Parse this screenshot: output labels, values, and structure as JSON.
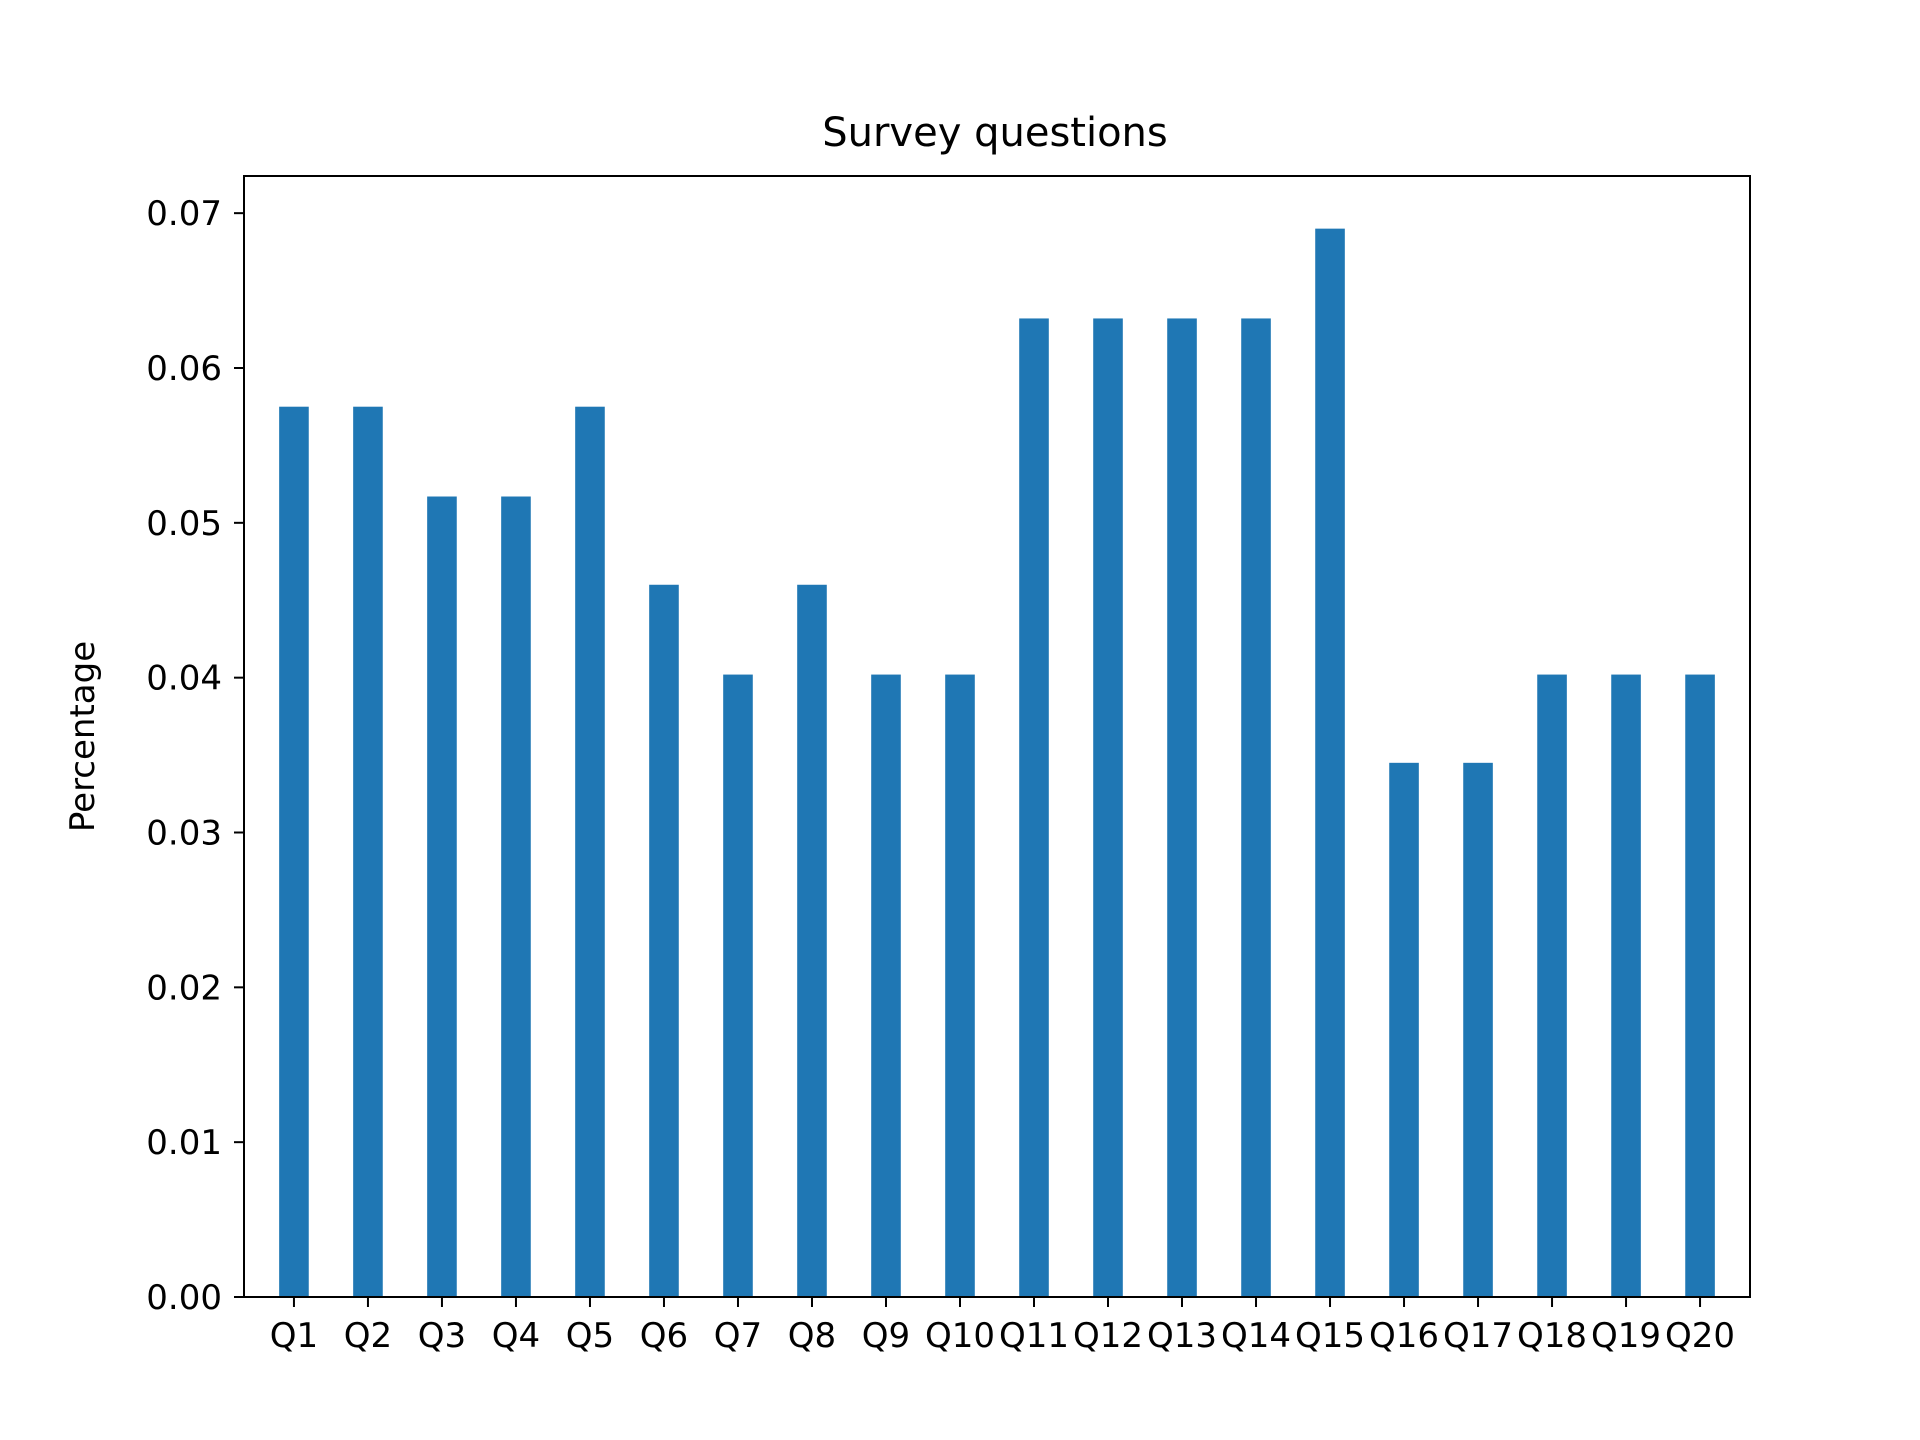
{
  "chart_data": {
    "type": "bar",
    "title": "Survey questions",
    "xlabel": "",
    "ylabel": "Percentage",
    "categories": [
      "Q1",
      "Q2",
      "Q3",
      "Q4",
      "Q5",
      "Q6",
      "Q7",
      "Q8",
      "Q9",
      "Q10",
      "Q11",
      "Q12",
      "Q13",
      "Q14",
      "Q15",
      "Q16",
      "Q17",
      "Q18",
      "Q19",
      "Q20"
    ],
    "values": [
      0.0575,
      0.0575,
      0.0517,
      0.0517,
      0.0575,
      0.046,
      0.0402,
      0.046,
      0.0402,
      0.0402,
      0.0632,
      0.0632,
      0.0632,
      0.0632,
      0.069,
      0.0345,
      0.0345,
      0.0402,
      0.0402,
      0.0402
    ],
    "ylim": [
      0,
      0.0724
    ],
    "yticks": [
      "0.00",
      "0.01",
      "0.02",
      "0.03",
      "0.04",
      "0.05",
      "0.06",
      "0.07"
    ],
    "grid": false,
    "bar_color": "#1f77b4"
  }
}
